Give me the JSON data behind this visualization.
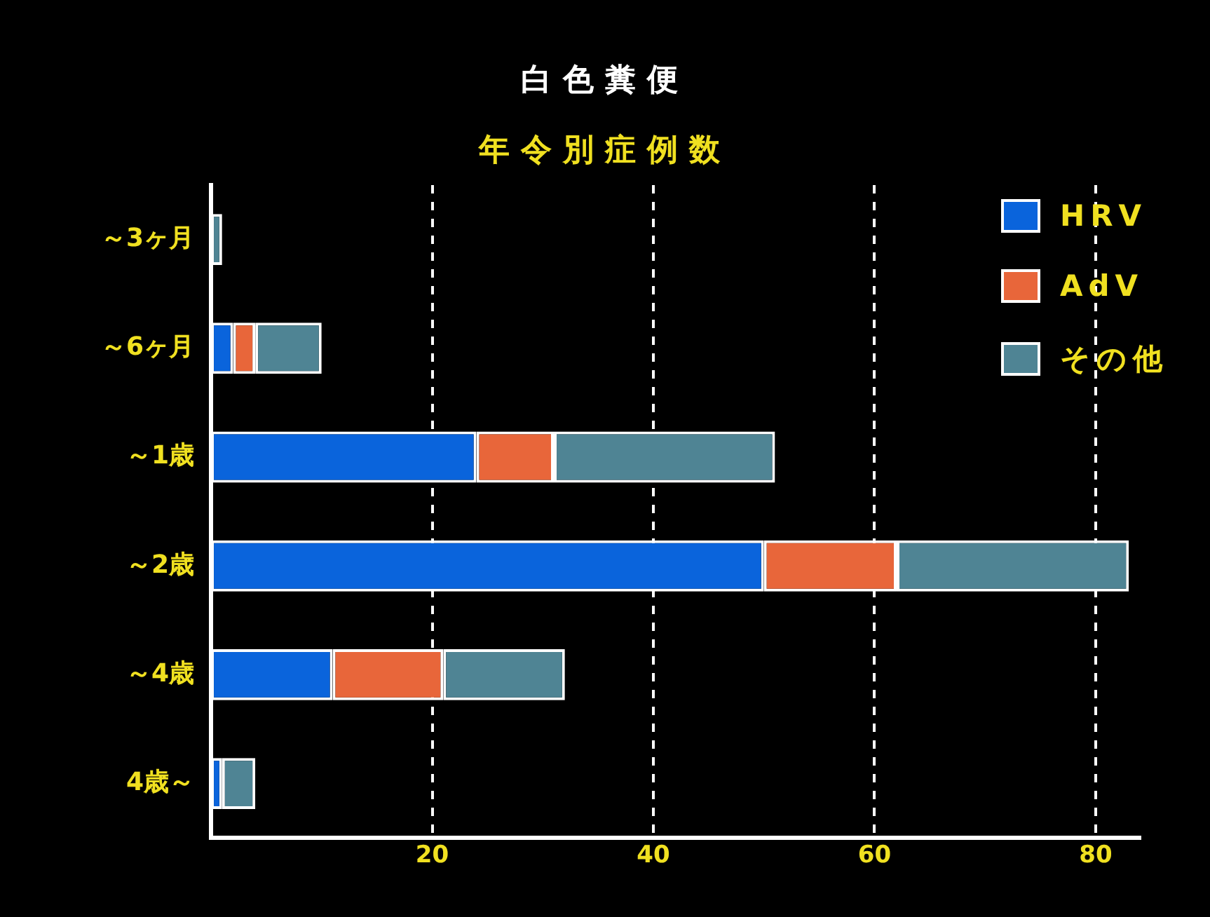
{
  "chart_data": {
    "type": "bar",
    "title": "白色糞便",
    "subtitle": "年令別症例数",
    "orientation": "horizontal",
    "stacked": true,
    "categories": [
      "～3ヶ月",
      "～6ヶ月",
      "～1歳",
      "～2歳",
      "～4歳",
      "4歳～"
    ],
    "series": [
      {
        "name": "HRV",
        "color": "#0a64dc",
        "values": [
          0,
          2,
          24,
          50,
          11,
          1
        ]
      },
      {
        "name": "AdV",
        "color": "#e8663a",
        "values": [
          0,
          2,
          7,
          12,
          10,
          0
        ]
      },
      {
        "name": "その他",
        "color": "#4f8494",
        "values": [
          1,
          6,
          20,
          21,
          11,
          3
        ]
      }
    ],
    "xlim": [
      0,
      84
    ],
    "xticks": [
      20,
      40,
      60,
      80
    ],
    "grid": "x",
    "legend": "top right"
  }
}
